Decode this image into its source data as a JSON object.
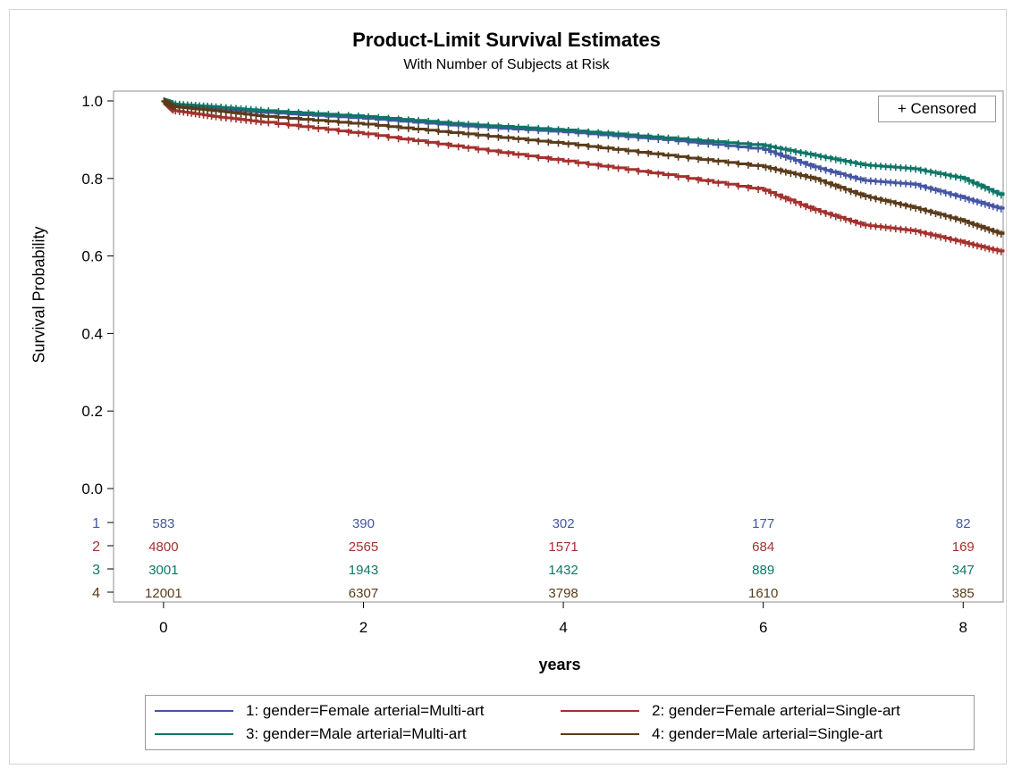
{
  "chart_data": {
    "type": "line",
    "title": "Product-Limit Survival Estimates",
    "subtitle": "With Number of Subjects at Risk",
    "xlabel": "years",
    "ylabel": "Survival Probability",
    "xlim": [
      -0.5,
      8.4
    ],
    "ylim": [
      0,
      1
    ],
    "x_ticks": [
      "0",
      "2",
      "4",
      "6",
      "8"
    ],
    "y_ticks": [
      "0.0",
      "0.2",
      "0.4",
      "0.6",
      "0.8",
      "1.0"
    ],
    "censored_label": "+ Censored",
    "grid": false,
    "legend_position": "bottom",
    "series": [
      {
        "id": "1",
        "name": "1: gender=Female arterial=Multi-art",
        "color": "#4556a3",
        "x": [
          0,
          0.1,
          0.5,
          1,
          2,
          3,
          4,
          5,
          6,
          6.5,
          7,
          7.5,
          8,
          8.4
        ],
        "y": [
          1.0,
          0.99,
          0.98,
          0.97,
          0.955,
          0.935,
          0.92,
          0.9,
          0.875,
          0.83,
          0.795,
          0.785,
          0.75,
          0.72
        ],
        "at_risk": [
          583,
          390,
          302,
          177,
          82
        ]
      },
      {
        "id": "2",
        "name": "2: gender=Female arterial=Single-art",
        "color": "#a4312e",
        "x": [
          0,
          0.1,
          0.5,
          1,
          2,
          3,
          4,
          5,
          6,
          6.5,
          7,
          7.5,
          8,
          8.4
        ],
        "y": [
          1.0,
          0.975,
          0.96,
          0.945,
          0.915,
          0.88,
          0.845,
          0.81,
          0.77,
          0.72,
          0.68,
          0.665,
          0.635,
          0.61
        ],
        "at_risk": [
          4800,
          2565,
          1571,
          684,
          169
        ]
      },
      {
        "id": "3",
        "name": "3: gender=Male arterial=Multi-art",
        "color": "#0f7566",
        "x": [
          0,
          0.1,
          0.5,
          1,
          2,
          3,
          4,
          5,
          6,
          6.5,
          7,
          7.5,
          8,
          8.4
        ],
        "y": [
          1.0,
          0.992,
          0.985,
          0.975,
          0.96,
          0.94,
          0.925,
          0.905,
          0.885,
          0.86,
          0.835,
          0.825,
          0.8,
          0.755
        ],
        "at_risk": [
          3001,
          1943,
          1432,
          889,
          347
        ]
      },
      {
        "id": "4",
        "name": "4: gender=Male arterial=Single-art",
        "color": "#5a3b1a",
        "x": [
          0,
          0.1,
          0.5,
          1,
          2,
          3,
          4,
          5,
          6,
          6.5,
          7,
          7.5,
          8,
          8.4
        ],
        "y": [
          1.0,
          0.985,
          0.975,
          0.96,
          0.94,
          0.915,
          0.89,
          0.86,
          0.83,
          0.8,
          0.755,
          0.725,
          0.69,
          0.655
        ],
        "at_risk": [
          12001,
          6307,
          3798,
          1610,
          385
        ]
      }
    ],
    "at_risk_x": [
      0,
      2,
      4,
      6,
      8
    ]
  }
}
